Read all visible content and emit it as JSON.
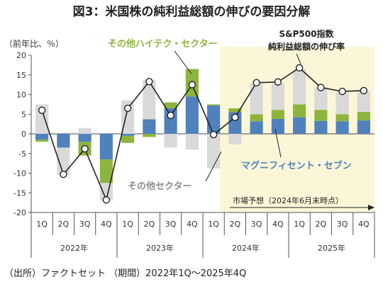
{
  "chart_data": {
    "type": "bar",
    "title": "図3：米国株の純利益総額の伸びの要因分解",
    "ylabel": "（前年比、％）",
    "ylim": [
      -20,
      20
    ],
    "yticks": [
      20,
      15,
      10,
      5,
      0,
      -5,
      -10,
      -15,
      -20
    ],
    "categories": [
      "1Q",
      "2Q",
      "3Q",
      "4Q",
      "1Q",
      "2Q",
      "3Q",
      "4Q",
      "1Q",
      "2Q",
      "3Q",
      "4Q",
      "1Q",
      "2Q",
      "3Q",
      "4Q"
    ],
    "years": [
      "2022年",
      "2023年",
      "2024年",
      "2025年"
    ],
    "forecast_start_index": 9,
    "series": [
      {
        "name": "マグニフィセント・セブン",
        "color": "#4f81bd",
        "values": [
          -1.5,
          -3.5,
          -2.0,
          -6.5,
          -0.5,
          3.7,
          6.5,
          9.5,
          7.2,
          5.5,
          3.2,
          3.8,
          4.2,
          3.3,
          3.2,
          3.4
        ]
      },
      {
        "name": "その他ハイテク・セクター",
        "color": "#8db43e",
        "values": [
          -0.5,
          0,
          -3.5,
          -6.0,
          -1.8,
          -0.8,
          1.5,
          7.0,
          0.3,
          1.0,
          1.8,
          2.3,
          3.3,
          2.8,
          1.8,
          2.2
        ]
      },
      {
        "name": "その他セクター",
        "color": "#d9d9d9",
        "values": [
          7.5,
          -7.0,
          1.5,
          -4.5,
          8.5,
          10.0,
          -3.5,
          -4.0,
          -8.8,
          -2.7,
          7.8,
          6.7,
          9.0,
          5.7,
          5.5,
          5.3
        ]
      }
    ],
    "line": {
      "name": "S&P500指数 純利益総額の伸び率",
      "values": [
        6.0,
        -10.3,
        -3.8,
        -16.8,
        6.5,
        13.3,
        4.7,
        12.5,
        -0.2,
        4.2,
        13.0,
        13.2,
        16.8,
        11.8,
        10.8,
        11.0
      ]
    },
    "annotations": {
      "other_tech": "その他ハイテク・セクター",
      "sp500_line1": "S&P500指数",
      "sp500_line2": "純利益総額の伸び率",
      "magnificent": "マグニフィセント・セブン",
      "other": "その他セクター",
      "forecast": "市場予想（2024年6月末時点）"
    },
    "forecast_fill": "#fbf6d8",
    "grid": false
  },
  "source_note": "（出所）ファクトセット （期間）2022年1Q～2025年4Q"
}
